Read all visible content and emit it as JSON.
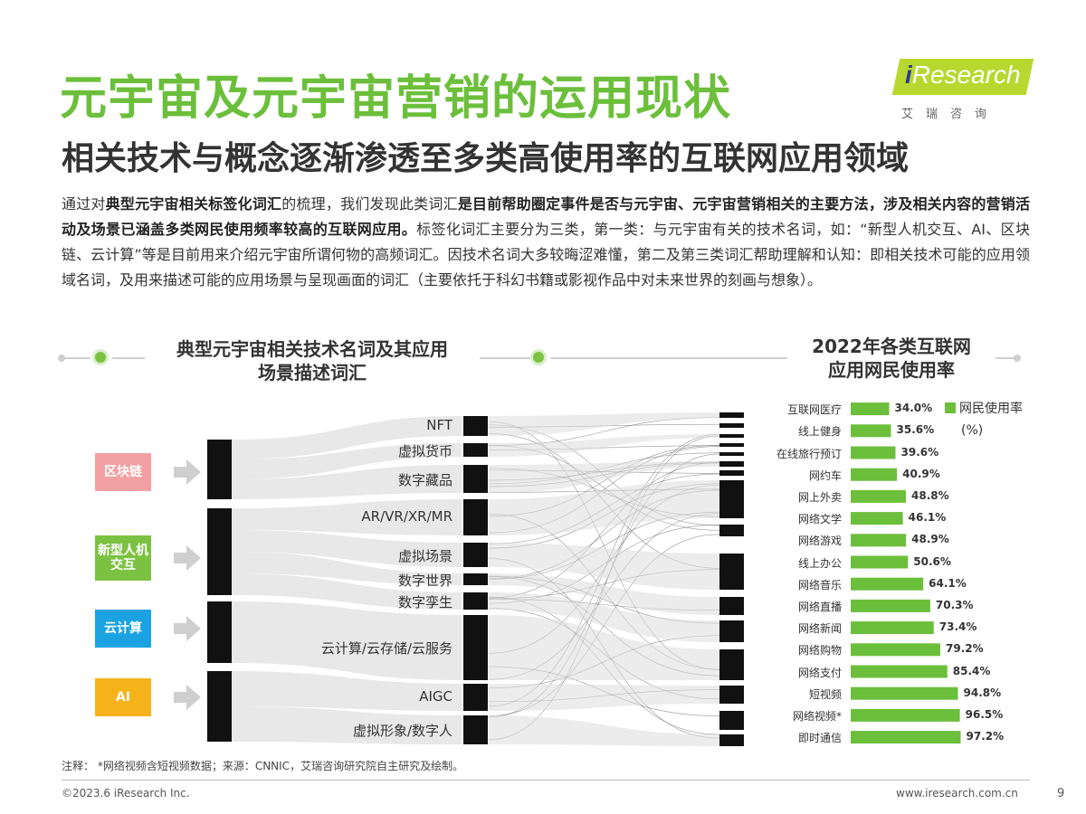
{
  "header": {
    "title": "元宇宙及元宇宙营销的运用现状",
    "subtitle": "相关技术与概念逐渐渗透至多类高使用率的互联网应用领域"
  },
  "logo": {
    "i": "i",
    "brand": "Research",
    "cn": "艾瑞咨询"
  },
  "intro": {
    "p1": "通过对",
    "b1": "典型元宇宙相关标签化词汇",
    "p2": "的梳理，我们发现此类词汇",
    "b2": "是目前帮助圈定事件是否与元宇宙、元宇宙营销相关的主要方法，涉及相关内容的营销活动及场景已涵盖多类网民使用频率较高的互联网应用。",
    "p3": "标签化词汇主要分为三类，第一类：与元宇宙有关的技术名词，如：“新型人机交互、AI、区块链、云计算”等是目前用来介绍元宇宙所谓何物的高频词汇。因技术名词大多较晦涩难懂，第二及第三类词汇帮助理解和认知：即相关技术可能的应用领域名词，及用来描述可能的应用场景与呈现画面的词汇（主要依托于科幻书籍或影视作品中对未来世界的刻画与想象）。"
  },
  "section_left": {
    "line1": "典型元宇宙相关技术名词及其应用",
    "line2": "场景描述词汇"
  },
  "section_right": {
    "line1": "2022年各类互联网",
    "line2": "应用网民使用率"
  },
  "categories": [
    {
      "label": "区块链",
      "color": "#f2a0a3"
    },
    {
      "label": "新型人机交互",
      "color": "#7cc242"
    },
    {
      "label": "云计算",
      "color": "#1aa3e0"
    },
    {
      "label": "AI",
      "color": "#f6b21a"
    }
  ],
  "terms": [
    "NFT",
    "虚拟货币",
    "数字藏品",
    "AR/VR/XR/MR",
    "虚拟场景",
    "数字世界",
    "数字孪生",
    "云计算/云存储/云服务",
    "AIGC",
    "虚拟形象/数字人"
  ],
  "legend": {
    "line1": "网民使用率",
    "line2": "(%)"
  },
  "chart_data": {
    "type": "bar",
    "orientation": "horizontal",
    "categories": [
      "互联网医疗",
      "线上健身",
      "在线旅行预订",
      "网约车",
      "网上外卖",
      "网络文学",
      "网络游戏",
      "线上办公",
      "网络音乐",
      "网络直播",
      "网络新闻",
      "网络购物",
      "网络支付",
      "短视频",
      "网络视频*",
      "即时通信"
    ],
    "values": [
      34.0,
      35.6,
      39.6,
      40.9,
      48.8,
      46.1,
      48.9,
      50.6,
      64.1,
      70.3,
      73.4,
      79.2,
      85.4,
      94.8,
      96.5,
      97.2
    ],
    "value_labels": [
      "34.0%",
      "35.6%",
      "39.6%",
      "40.9%",
      "48.8%",
      "46.1%",
      "48.9%",
      "50.6%",
      "64.1%",
      "70.3%",
      "73.4%",
      "79.2%",
      "85.4%",
      "94.8%",
      "96.5%",
      "97.2%"
    ],
    "series": [
      {
        "name": "网民使用率(%)",
        "values": [
          34.0,
          35.6,
          39.6,
          40.9,
          48.8,
          46.1,
          48.9,
          50.6,
          64.1,
          70.3,
          73.4,
          79.2,
          85.4,
          94.8,
          96.5,
          97.2
        ]
      }
    ],
    "color": "#6cbf3b",
    "legend_position": "top-right",
    "grid": false
  },
  "note": "注释：  *网络视频含短视频数据；来源：CNNIC，艾瑞咨询研究院自主研究及绘制。",
  "footer": {
    "copyright": "©2023.6 iResearch Inc.",
    "site": "www.iresearch.com.cn",
    "page": "9"
  }
}
